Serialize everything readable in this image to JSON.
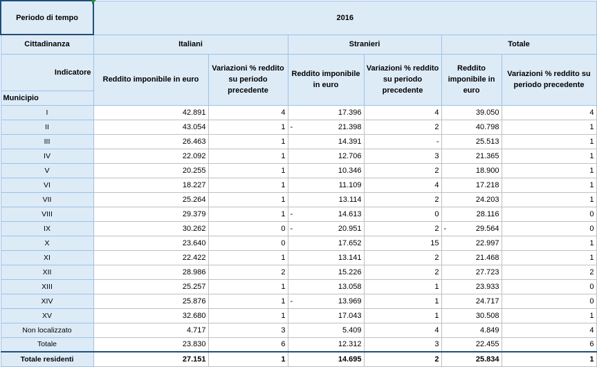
{
  "header": {
    "periodo_label": "Periodo di tempo",
    "year": "2016",
    "cittadinanza_label": "Cittadinanza",
    "groups": [
      "Italiani",
      "Stranieri",
      "Totale"
    ],
    "indicatore_label": "Indicatore",
    "municipio_label": "Municipio",
    "columns": [
      "Reddito imponibile in euro",
      "Variazioni % reddito su periodo precedente",
      "Reddito imponibile in euro",
      "Variazioni % reddito su periodo precedente",
      "Reddito imponibile in euro",
      "Variazioni % reddito su periodo precedente"
    ]
  },
  "rows": [
    {
      "label": "I",
      "v": [
        "42.891",
        "4",
        "17.396",
        "4",
        "39.050",
        "4"
      ],
      "neg": [
        false,
        false,
        false,
        false,
        false,
        false
      ]
    },
    {
      "label": "II",
      "v": [
        "43.054",
        "1",
        "21.398",
        "2",
        "40.798",
        "1"
      ],
      "neg": [
        false,
        false,
        true,
        false,
        false,
        false
      ]
    },
    {
      "label": "III",
      "v": [
        "26.463",
        "1",
        "14.391",
        "-",
        "25.513",
        "1"
      ],
      "neg": [
        false,
        false,
        false,
        false,
        false,
        false
      ]
    },
    {
      "label": "IV",
      "v": [
        "22.092",
        "1",
        "12.706",
        "3",
        "21.365",
        "1"
      ],
      "neg": [
        false,
        false,
        false,
        false,
        false,
        false
      ]
    },
    {
      "label": "V",
      "v": [
        "20.255",
        "1",
        "10.346",
        "2",
        "18.900",
        "1"
      ],
      "neg": [
        false,
        false,
        false,
        false,
        false,
        false
      ]
    },
    {
      "label": "VI",
      "v": [
        "18.227",
        "1",
        "11.109",
        "4",
        "17.218",
        "1"
      ],
      "neg": [
        false,
        false,
        false,
        false,
        false,
        false
      ]
    },
    {
      "label": "VII",
      "v": [
        "25.264",
        "1",
        "13.114",
        "2",
        "24.203",
        "1"
      ],
      "neg": [
        false,
        false,
        false,
        false,
        false,
        false
      ]
    },
    {
      "label": "VIII",
      "v": [
        "29.379",
        "1",
        "14.613",
        "0",
        "28.116",
        "0"
      ],
      "neg": [
        false,
        false,
        true,
        false,
        false,
        false
      ]
    },
    {
      "label": "IX",
      "v": [
        "30.262",
        "0",
        "20.951",
        "2",
        "29.564",
        "0"
      ],
      "neg": [
        false,
        false,
        true,
        false,
        true,
        false
      ]
    },
    {
      "label": "X",
      "v": [
        "23.640",
        "0",
        "17.652",
        "15",
        "22.997",
        "1"
      ],
      "neg": [
        false,
        false,
        false,
        false,
        false,
        false
      ]
    },
    {
      "label": "XI",
      "v": [
        "22.422",
        "1",
        "13.141",
        "2",
        "21.468",
        "1"
      ],
      "neg": [
        false,
        false,
        false,
        false,
        false,
        false
      ]
    },
    {
      "label": "XII",
      "v": [
        "28.986",
        "2",
        "15.226",
        "2",
        "27.723",
        "2"
      ],
      "neg": [
        false,
        false,
        false,
        false,
        false,
        false
      ]
    },
    {
      "label": "XIII",
      "v": [
        "25.257",
        "1",
        "13.058",
        "1",
        "23.933",
        "0"
      ],
      "neg": [
        false,
        false,
        false,
        false,
        false,
        false
      ]
    },
    {
      "label": "XIV",
      "v": [
        "25.876",
        "1",
        "13.969",
        "1",
        "24.717",
        "0"
      ],
      "neg": [
        false,
        false,
        true,
        false,
        false,
        false
      ]
    },
    {
      "label": "XV",
      "v": [
        "32.680",
        "1",
        "17.043",
        "1",
        "30.508",
        "1"
      ],
      "neg": [
        false,
        false,
        false,
        false,
        false,
        false
      ]
    },
    {
      "label": "Non localizzato",
      "v": [
        "4.717",
        "3",
        "5.409",
        "4",
        "4.849",
        "4"
      ],
      "neg": [
        false,
        false,
        false,
        false,
        false,
        false
      ]
    },
    {
      "label": "Totale",
      "v": [
        "23.830",
        "6",
        "12.312",
        "3",
        "22.455",
        "6"
      ],
      "neg": [
        false,
        false,
        false,
        false,
        false,
        false
      ]
    }
  ],
  "total_row": {
    "label": "Totale residenti",
    "v": [
      "27.151",
      "1",
      "14.695",
      "2",
      "25.834",
      "1"
    ],
    "neg": [
      false,
      false,
      false,
      false,
      false,
      false
    ]
  },
  "colors": {
    "header_bg": "#ddebf7",
    "header_border": "#9bc2e6",
    "dark_border": "#1f4e79",
    "corner_mark": "#1e8c3a"
  }
}
